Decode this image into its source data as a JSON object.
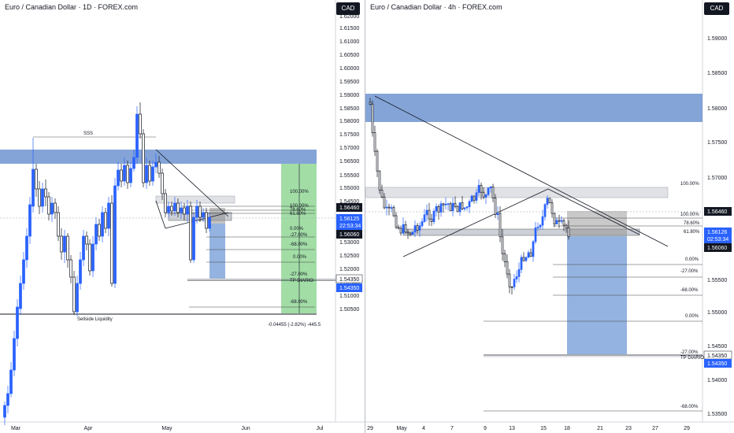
{
  "left": {
    "title": "Euro / Canadian Dollar · 1D · FOREX.com",
    "currency": "CAD",
    "y_ticks": [
      "1.62000",
      "1.61500",
      "1.61000",
      "1.60500",
      "1.60000",
      "1.59500",
      "1.59000",
      "1.58500",
      "1.58000",
      "1.57500",
      "1.57000",
      "1.56500",
      "1.55500",
      "1.55000",
      "1.54500",
      "1.53500",
      "1.53000",
      "1.52500",
      "1.52000",
      "1.51500",
      "1.51000",
      "1.50500"
    ],
    "x_ticks": [
      "Mar",
      "Apr",
      "May",
      "Jun",
      "Jul"
    ],
    "price_tags": {
      "upper": "1.56460",
      "current": "1.56125",
      "countdown": "22:53:34",
      "lower": "1.56060",
      "tp1": "1.54350",
      "tp2": "1.54350"
    },
    "fib_labels": [
      "100.00%",
      "100.00%",
      "78.60%",
      "61.80%",
      "0.00%",
      "-27.00%",
      "-68.00%",
      "0.00%",
      "-27.00%",
      "TP DIARIO",
      "-68.00%"
    ],
    "annotations": {
      "sss": "SSS",
      "sellside": "Sellside Liquidity",
      "measure": "-0.04455 (-2.82%) -445.5"
    }
  },
  "right": {
    "title": "Euro / Canadian Dollar · 4h · FOREX.com",
    "currency": "CAD",
    "y_ticks": [
      "1.59000",
      "1.58500",
      "1.58000",
      "1.57500",
      "1.57000",
      "1.56500",
      "1.55500",
      "1.55000",
      "1.54500",
      "1.54000",
      "1.53500"
    ],
    "x_ticks": [
      "29",
      "May",
      "4",
      "7",
      "9",
      "13",
      "15",
      "18",
      "21",
      "23",
      "27",
      "29"
    ],
    "price_tags": {
      "upper": "1.56460",
      "current": "1.56126",
      "countdown": "02:53:34",
      "lower": "1.56060",
      "tp1": "1.54350",
      "tp2": "1.54350"
    },
    "fib_labels": [
      "100.00%",
      "100.00%",
      "78.60%",
      "61.80%",
      "0.00%",
      "-27.00%",
      "-68.00%",
      "0.00%",
      "-27.00%",
      "TP DIARIO",
      "-68.00%"
    ]
  },
  "colors": {
    "bull": "#2962ff",
    "bear": "#131722",
    "zone_blue": "#5b85c9",
    "zone_gray": "#d9dbe0",
    "tp_green": "#7bcf80",
    "sl_blue": "#7aa0d8"
  }
}
